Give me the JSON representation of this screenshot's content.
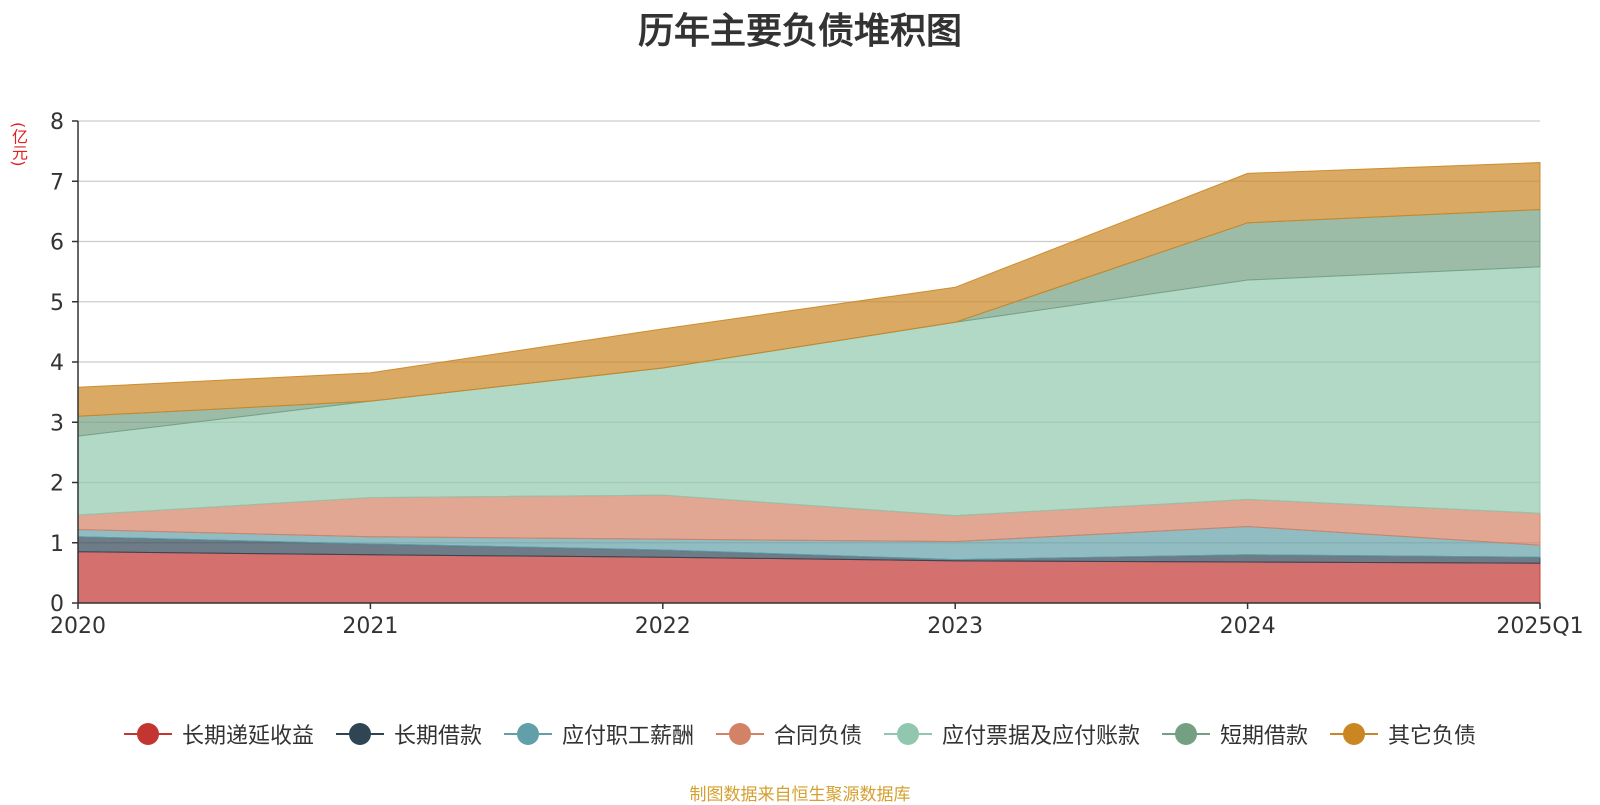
{
  "title": "历年主要负债堆积图",
  "unit": "(亿元)",
  "source": "制图数据来自恒生聚源数据库",
  "chart_data": {
    "type": "area",
    "stacked": true,
    "x": [
      "2020",
      "2021",
      "2022",
      "2023",
      "2024",
      "2025Q1"
    ],
    "ylim": [
      0,
      8
    ],
    "yticks": [
      0,
      1,
      2,
      3,
      4,
      5,
      6,
      7,
      8
    ],
    "grid": true,
    "legend_position": "bottom",
    "series": [
      {
        "name": "长期递延收益",
        "color": "#c23531",
        "values": [
          0.85,
          0.8,
          0.76,
          0.7,
          0.68,
          0.66
        ]
      },
      {
        "name": "长期借款",
        "color": "#2f4554",
        "values": [
          0.25,
          0.18,
          0.12,
          0.02,
          0.12,
          0.1
        ]
      },
      {
        "name": "应付职工薪酬",
        "color": "#61a0a8",
        "values": [
          0.12,
          0.12,
          0.18,
          0.3,
          0.47,
          0.2
        ]
      },
      {
        "name": "合同负债",
        "color": "#d48265",
        "values": [
          0.24,
          0.65,
          0.73,
          0.43,
          0.45,
          0.53
        ]
      },
      {
        "name": "应付票据及应付账款",
        "color": "#91c7ae",
        "values": [
          1.31,
          1.6,
          2.11,
          3.21,
          3.64,
          4.09
        ]
      },
      {
        "name": "短期借款",
        "color": "#749f83",
        "values": [
          0.33,
          0.0,
          0.0,
          0.0,
          0.95,
          0.95
        ]
      },
      {
        "name": "其它负债",
        "color": "#ca8622",
        "values": [
          0.48,
          0.47,
          0.65,
          0.58,
          0.82,
          0.78
        ]
      }
    ]
  }
}
